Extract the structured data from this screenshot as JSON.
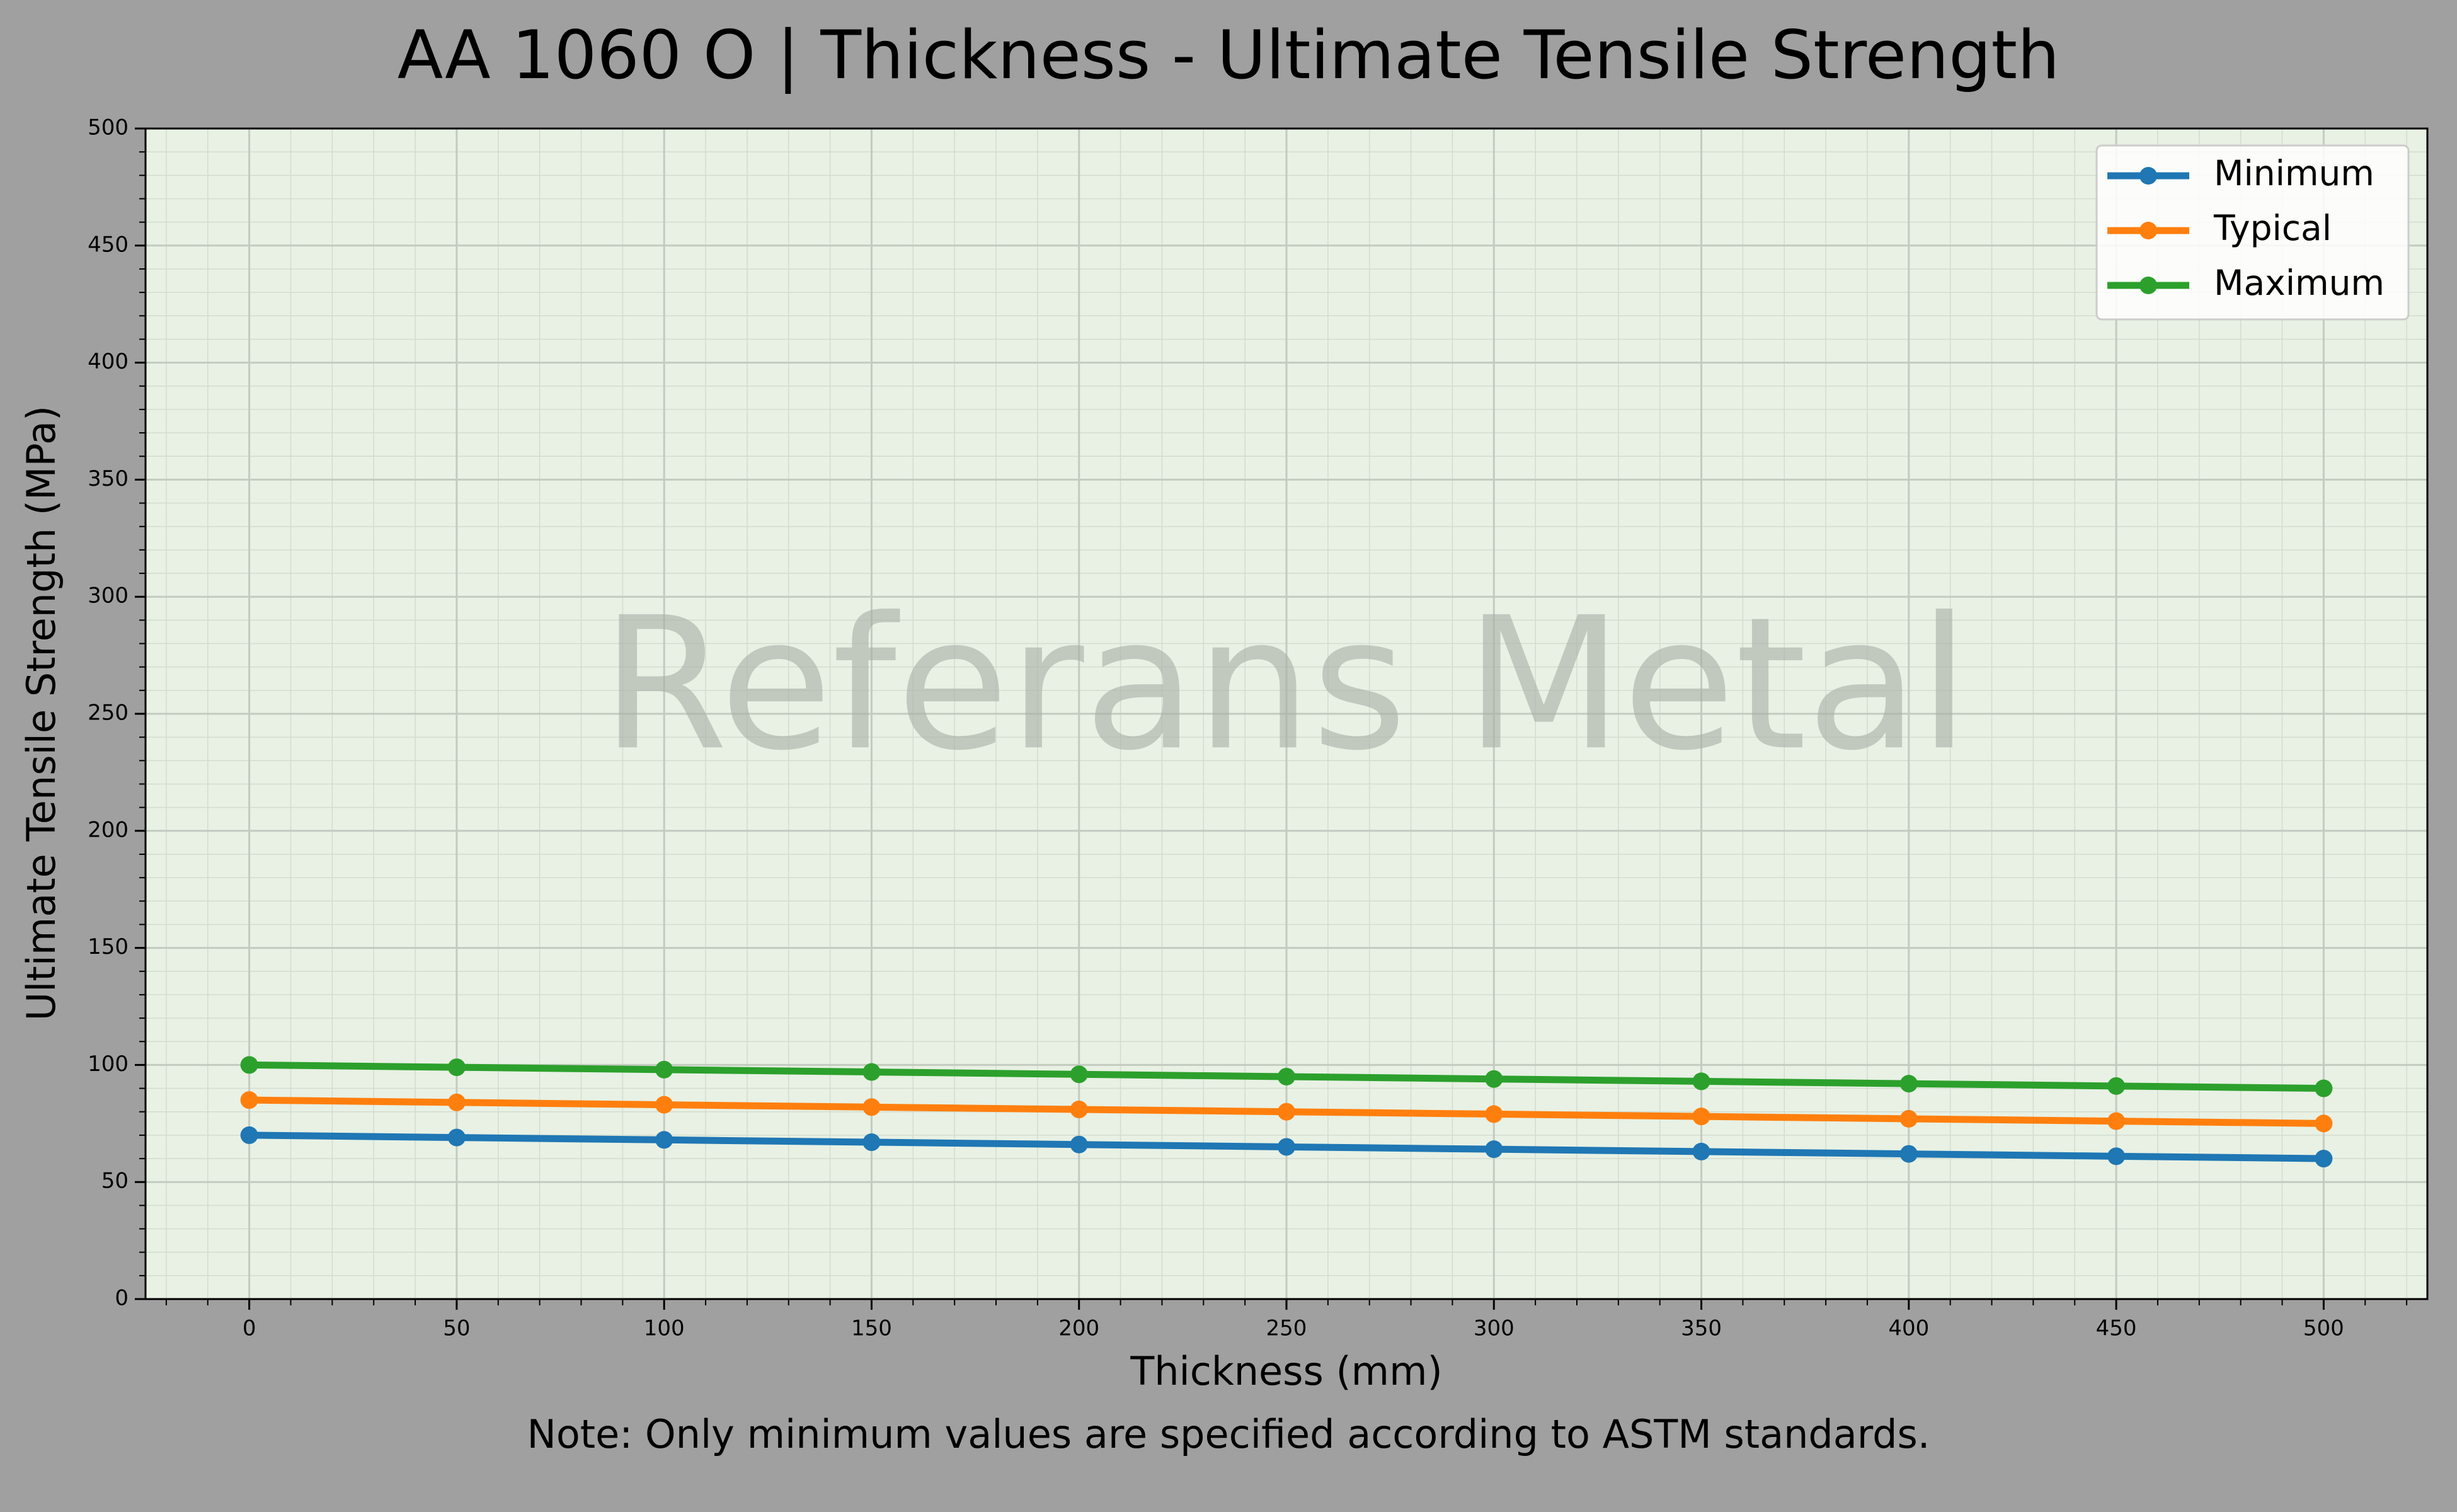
{
  "chart_data": {
    "type": "line",
    "title": "AA 1060 O | Thickness - Ultimate Tensile Strength",
    "x_label": "Thickness (mm)",
    "y_label": "Ultimate Tensile Strength (MPa)",
    "note": "Note: Only minimum values are specified according to ASTM standards.",
    "watermark": "Referans Metal",
    "x": [
      0,
      50,
      100,
      150,
      200,
      250,
      300,
      350,
      400,
      450,
      500
    ],
    "series": [
      {
        "name": "Minimum",
        "color": "#1f77b4",
        "values": [
          70,
          69,
          68,
          67,
          66,
          65,
          64,
          63,
          62,
          61,
          60
        ]
      },
      {
        "name": "Typical",
        "color": "#ff7f0e",
        "values": [
          85,
          84,
          83,
          82,
          81,
          80,
          79,
          78,
          77,
          76,
          75
        ]
      },
      {
        "name": "Maximum",
        "color": "#2ca02c",
        "values": [
          100,
          99,
          98,
          97,
          96,
          95,
          94,
          93,
          92,
          91,
          90
        ]
      }
    ],
    "xlim": [
      -25,
      525
    ],
    "ylim": [
      0,
      500
    ],
    "xticks": [
      0,
      50,
      100,
      150,
      200,
      250,
      300,
      350,
      400,
      450,
      500
    ],
    "yticks": [
      0,
      50,
      100,
      150,
      200,
      250,
      300,
      350,
      400,
      450,
      500
    ],
    "grid": true,
    "legend": "upper-right"
  }
}
